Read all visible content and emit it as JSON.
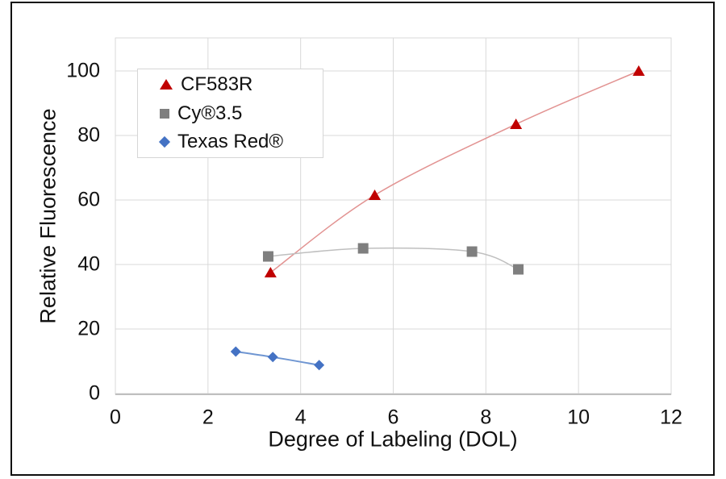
{
  "chart_data": {
    "type": "scatter",
    "title": "",
    "xlabel": "Degree of Labeling (DOL)",
    "ylabel": "Relative Fluorescence",
    "xlim": [
      0,
      12
    ],
    "ylim": [
      0,
      100
    ],
    "x_ticks": [
      0,
      2,
      4,
      6,
      8,
      10,
      12
    ],
    "y_ticks": [
      0,
      20,
      40,
      60,
      80,
      100
    ],
    "grid": true,
    "legend_position": "top-left-inside",
    "series": [
      {
        "name": "CF583R",
        "marker": "triangle",
        "marker_color": "#C00000",
        "line_color": "#E29392",
        "line_width": 1.5,
        "points": [
          [
            3.35,
            37.5
          ],
          [
            5.6,
            61.5
          ],
          [
            8.65,
            83.5
          ],
          [
            11.3,
            100
          ]
        ]
      },
      {
        "name": "Cy®3.5",
        "marker": "square",
        "marker_color": "#7F7F7F",
        "line_color": "#BFBFBF",
        "line_width": 1.5,
        "points": [
          [
            3.3,
            42.5
          ],
          [
            5.35,
            45
          ],
          [
            7.7,
            44
          ],
          [
            8.7,
            38.5
          ]
        ]
      },
      {
        "name": "Texas Red®",
        "marker": "diamond",
        "marker_color": "#4472C4",
        "line_color": "#6F96D2",
        "line_width": 2,
        "points": [
          [
            2.6,
            13
          ],
          [
            3.4,
            11.3
          ],
          [
            4.4,
            8.8
          ]
        ]
      }
    ],
    "colors": {
      "gridline": "#D9D9D9",
      "plot_border": "#D9D9D9",
      "axis_line": "#BFBFBF",
      "text": "#111111",
      "frame_border": "#0F0F0F",
      "legend_border": "#D6D6D6",
      "background": "#FFFFFF"
    }
  }
}
